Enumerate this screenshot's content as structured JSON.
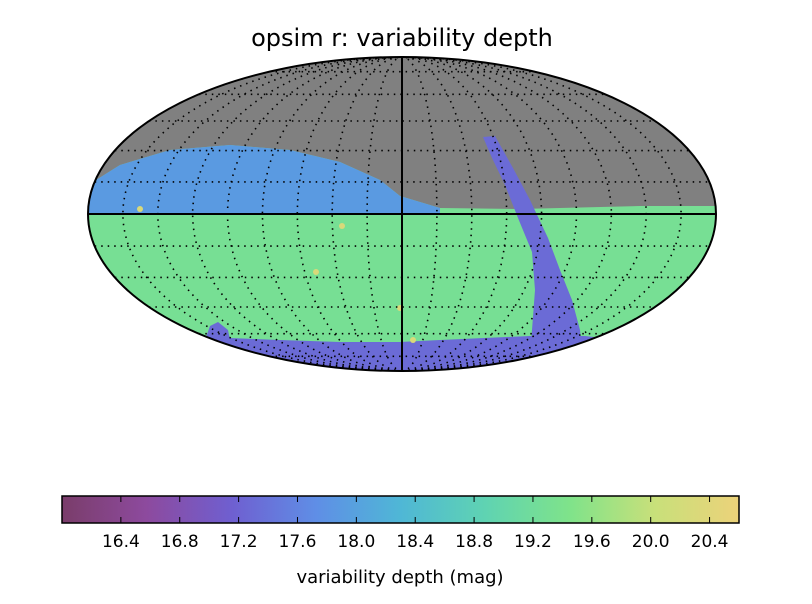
{
  "chart_data": {
    "type": "heatmap",
    "projection": "mollweide",
    "title": "opsim  r: variability depth",
    "colorbar": {
      "label": "variability depth (mag)",
      "range": [
        16.0,
        20.6
      ],
      "ticks": [
        "16.4",
        "16.8",
        "17.2",
        "17.6",
        "18.0",
        "18.4",
        "18.8",
        "19.2",
        "19.6",
        "20.0",
        "20.4"
      ],
      "colormap": [
        "#7a3d6a",
        "#8d4a9e",
        "#6f5fd0",
        "#5f8ee6",
        "#4fb7d6",
        "#5fd3b2",
        "#7fe38a",
        "#c8e07a",
        "#ecd27a"
      ]
    },
    "sky_map": {
      "unobserved_color": "#808080",
      "typical_depth": 19.3,
      "galactic_plane_depth": 17.3,
      "south_pole_depth": 17.3,
      "northern_band_depth": 17.9,
      "bright_spots_depth": 20.3,
      "grid": "dotted graticule, solid equator and central meridian"
    }
  }
}
